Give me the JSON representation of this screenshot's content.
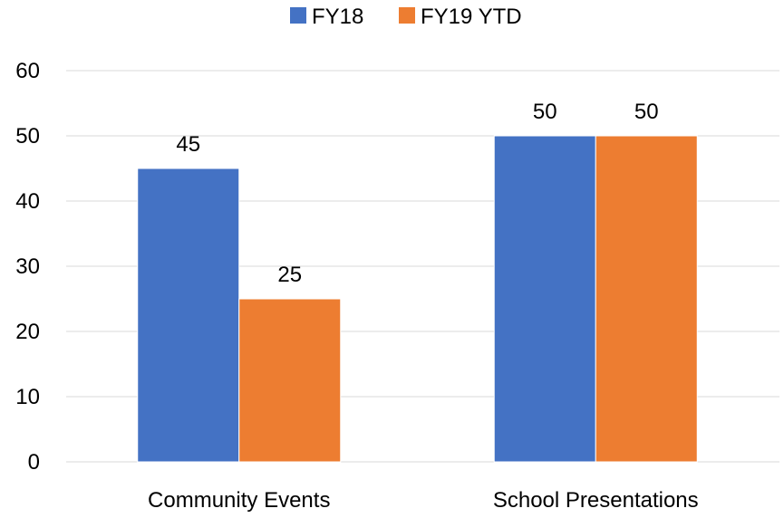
{
  "chart_data": {
    "type": "bar",
    "categories": [
      "Community Events",
      "School Presentations"
    ],
    "series": [
      {
        "name": "FY18",
        "values": [
          45,
          50
        ],
        "color": "#4472C4"
      },
      {
        "name": "FY19 YTD",
        "values": [
          25,
          50
        ],
        "color": "#ED7D31"
      }
    ],
    "ylim": [
      0,
      60
    ],
    "yticks": [
      0,
      10,
      20,
      30,
      40,
      50,
      60
    ],
    "grid": true,
    "legend_position": "top-center",
    "data_labels": true,
    "gridline_color": "#D9D9D9"
  }
}
